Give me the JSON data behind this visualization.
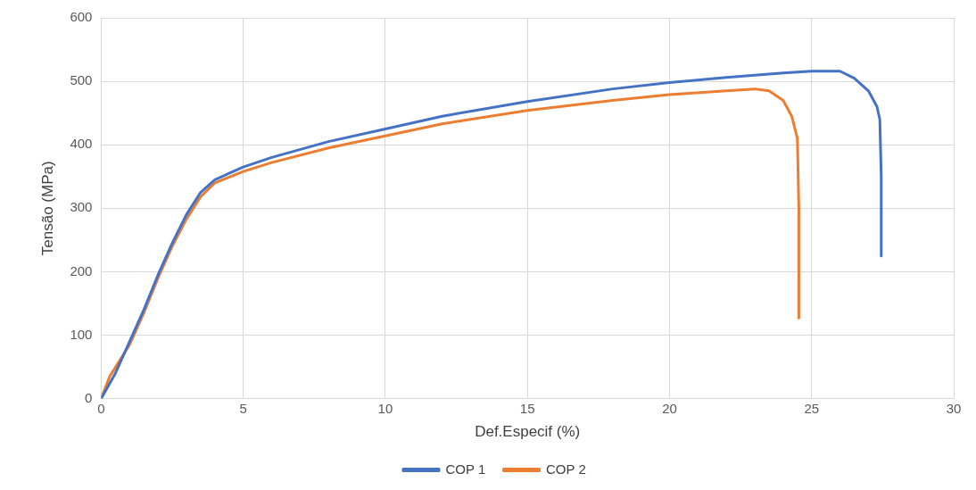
{
  "chart_data": {
    "type": "line",
    "xlabel": "Def.Especif (%)",
    "ylabel": "Tensão (MPa)",
    "xlim": [
      0,
      30
    ],
    "xticks": [
      0,
      5,
      10,
      15,
      20,
      25,
      30
    ],
    "ylim": [
      0,
      600
    ],
    "yticks": [
      0,
      100,
      200,
      300,
      400,
      500,
      600
    ],
    "grid": true,
    "legend": "bottom",
    "marker": "none",
    "series": [
      {
        "name": "COP 1",
        "color": "#4472c4",
        "x": [
          0,
          0.5,
          1,
          1.5,
          2,
          2.5,
          3,
          3.5,
          4,
          5,
          6,
          8,
          10,
          12,
          15,
          18,
          20,
          22,
          24,
          25,
          26,
          26.5,
          27,
          27.3,
          27.4,
          27.45,
          27.45
        ],
        "values": [
          0,
          40,
          90,
          140,
          195,
          245,
          290,
          325,
          345,
          365,
          380,
          405,
          425,
          445,
          468,
          488,
          498,
          506,
          513,
          516,
          516,
          505,
          485,
          460,
          440,
          350,
          225
        ]
      },
      {
        "name": "COP 2",
        "color": "#ed7d31",
        "x": [
          0,
          0.3,
          1,
          1.5,
          2,
          2.5,
          3,
          3.5,
          4,
          5,
          6,
          8,
          10,
          12,
          15,
          18,
          20,
          22,
          23,
          23.5,
          24,
          24.3,
          24.5,
          24.55,
          24.55
        ],
        "values": [
          0,
          35,
          85,
          135,
          190,
          240,
          283,
          318,
          340,
          358,
          372,
          395,
          414,
          433,
          454,
          470,
          479,
          485,
          488,
          485,
          470,
          445,
          410,
          300,
          127
        ]
      }
    ]
  }
}
